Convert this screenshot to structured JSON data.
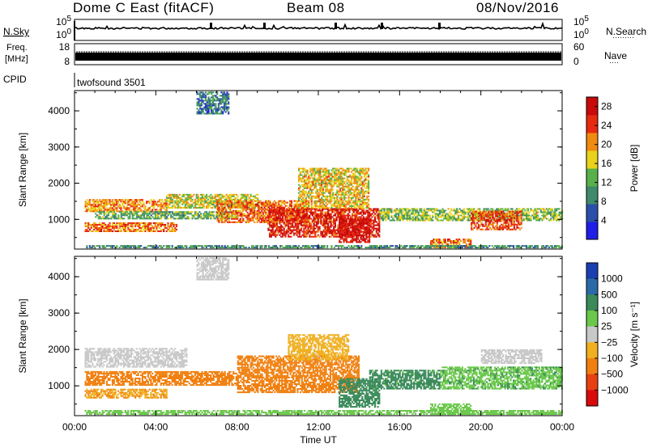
{
  "header": {
    "station": "Dome C East (fitACF)",
    "beam": "Beam 08",
    "date": "08/Nov/2016"
  },
  "aux_panels": {
    "nsky_label": "N.Sky",
    "nsearch_label": "N.Search",
    "nsearch_dots": "·········",
    "freq_label": "Freq.",
    "freq_unit": "[MHz]",
    "nave_label": "Nave",
    "nave_dots": "····",
    "cpid_label": "CPID",
    "cpid_text": "twofsound 3501",
    "noise_ticks_left": [
      "10^5",
      "10^0"
    ],
    "noise_ticks_right": [
      "10^5",
      "10^0"
    ],
    "freq_ticks": [
      "18",
      "8"
    ],
    "nave_ticks": [
      "60",
      "0"
    ]
  },
  "chart_data": [
    {
      "type": "heatmap",
      "panel": "power",
      "ylabel": "Slant Range [km]",
      "xlabel": "",
      "x_unit": "hours UT",
      "xlim": [
        0,
        24
      ],
      "ylim": [
        180,
        4560
      ],
      "yticks": [
        1000,
        2000,
        3000,
        4000
      ],
      "colorbar": {
        "label": "Power [dB]",
        "ticks": [
          "4",
          "8",
          "12",
          "16",
          "20",
          "24",
          "28"
        ],
        "tick_values": [
          4,
          8,
          12,
          16,
          20,
          24,
          28
        ],
        "range": [
          0,
          30
        ],
        "colors": [
          "#1e1ee6",
          "#2a4fa8",
          "#3f8a6a",
          "#58b04a",
          "#e8d21a",
          "#f08a10",
          "#e82a10",
          "#c80a0a"
        ]
      },
      "echo_regions": [
        {
          "t0": 0.5,
          "t1": 4.5,
          "r0": 1200,
          "r1": 1550,
          "value": 20
        },
        {
          "t0": 0.5,
          "t1": 5.0,
          "r0": 650,
          "r1": 900,
          "value": 22
        },
        {
          "t0": 1.0,
          "t1": 8.0,
          "r0": 1000,
          "r1": 1200,
          "value": 12
        },
        {
          "t0": 4.5,
          "t1": 9.0,
          "r0": 1300,
          "r1": 1700,
          "value": 16
        },
        {
          "t0": 7.0,
          "t1": 11.5,
          "r0": 900,
          "r1": 1500,
          "value": 22
        },
        {
          "t0": 9.5,
          "t1": 15.0,
          "r0": 500,
          "r1": 1300,
          "value": 26
        },
        {
          "t0": 11.0,
          "t1": 14.5,
          "r0": 1300,
          "r1": 2400,
          "value": 18
        },
        {
          "t0": 13.0,
          "t1": 14.5,
          "r0": 350,
          "r1": 1000,
          "value": 28
        },
        {
          "t0": 15.0,
          "t1": 24.0,
          "r0": 950,
          "r1": 1300,
          "value": 14
        },
        {
          "t0": 17.5,
          "t1": 19.5,
          "r0": 200,
          "r1": 450,
          "value": 22
        },
        {
          "t0": 19.5,
          "t1": 22.0,
          "r0": 700,
          "r1": 1200,
          "value": 24
        },
        {
          "t0": 0.5,
          "t1": 24.0,
          "r0": 200,
          "r1": 280,
          "value": 10
        },
        {
          "t0": 6.0,
          "t1": 7.6,
          "r0": 3900,
          "r1": 4500,
          "value": 8
        }
      ]
    },
    {
      "type": "heatmap",
      "panel": "velocity",
      "ylabel": "Slant Range [km]",
      "xlabel": "Time UT",
      "x_unit": "hours UT",
      "xlim": [
        0,
        24
      ],
      "ylim": [
        180,
        4560
      ],
      "yticks": [
        1000,
        2000,
        3000,
        4000
      ],
      "xticks": [
        "00:00",
        "04:00",
        "08:00",
        "12:00",
        "16:00",
        "20:00",
        "00:00"
      ],
      "colorbar": {
        "label": "Velocity [m s⁻¹]",
        "ticks": [
          "1000",
          "500",
          "100",
          "25",
          "−25",
          "−100",
          "−500",
          "−1000"
        ],
        "tick_values": [
          1000,
          500,
          100,
          25,
          -25,
          -100,
          -500,
          -1000
        ],
        "colors": [
          "#1a3fb0",
          "#2a6aa8",
          "#3a8a5a",
          "#6ac84a",
          "#c8c8c8",
          "#f0b020",
          "#f08010",
          "#e84010",
          "#d80a0a"
        ]
      },
      "echo_regions": [
        {
          "t0": 0.5,
          "t1": 5.5,
          "r0": 1500,
          "r1": 2000,
          "value": 0
        },
        {
          "t0": 0.5,
          "t1": 4.5,
          "r0": 650,
          "r1": 900,
          "value": -90
        },
        {
          "t0": 0.5,
          "t1": 8.0,
          "r0": 1000,
          "r1": 1400,
          "value": -250
        },
        {
          "t0": 8.0,
          "t1": 14.0,
          "r0": 800,
          "r1": 1800,
          "value": -300
        },
        {
          "t0": 10.5,
          "t1": 13.5,
          "r0": 1700,
          "r1": 2400,
          "value": -50
        },
        {
          "t0": 13.0,
          "t1": 15.0,
          "r0": 400,
          "r1": 1200,
          "value": 200
        },
        {
          "t0": 14.5,
          "t1": 18.0,
          "r0": 900,
          "r1": 1400,
          "value": 150
        },
        {
          "t0": 17.5,
          "t1": 19.5,
          "r0": 200,
          "r1": 500,
          "value": 60
        },
        {
          "t0": 18.0,
          "t1": 24.0,
          "r0": 900,
          "r1": 1500,
          "value": 80
        },
        {
          "t0": 20.0,
          "t1": 23.0,
          "r0": 1600,
          "r1": 2000,
          "value": 0
        },
        {
          "t0": 0.5,
          "t1": 24.0,
          "r0": 200,
          "r1": 300,
          "value": 50
        },
        {
          "t0": 6.0,
          "t1": 7.6,
          "r0": 3900,
          "r1": 4500,
          "value": 0
        }
      ]
    }
  ]
}
